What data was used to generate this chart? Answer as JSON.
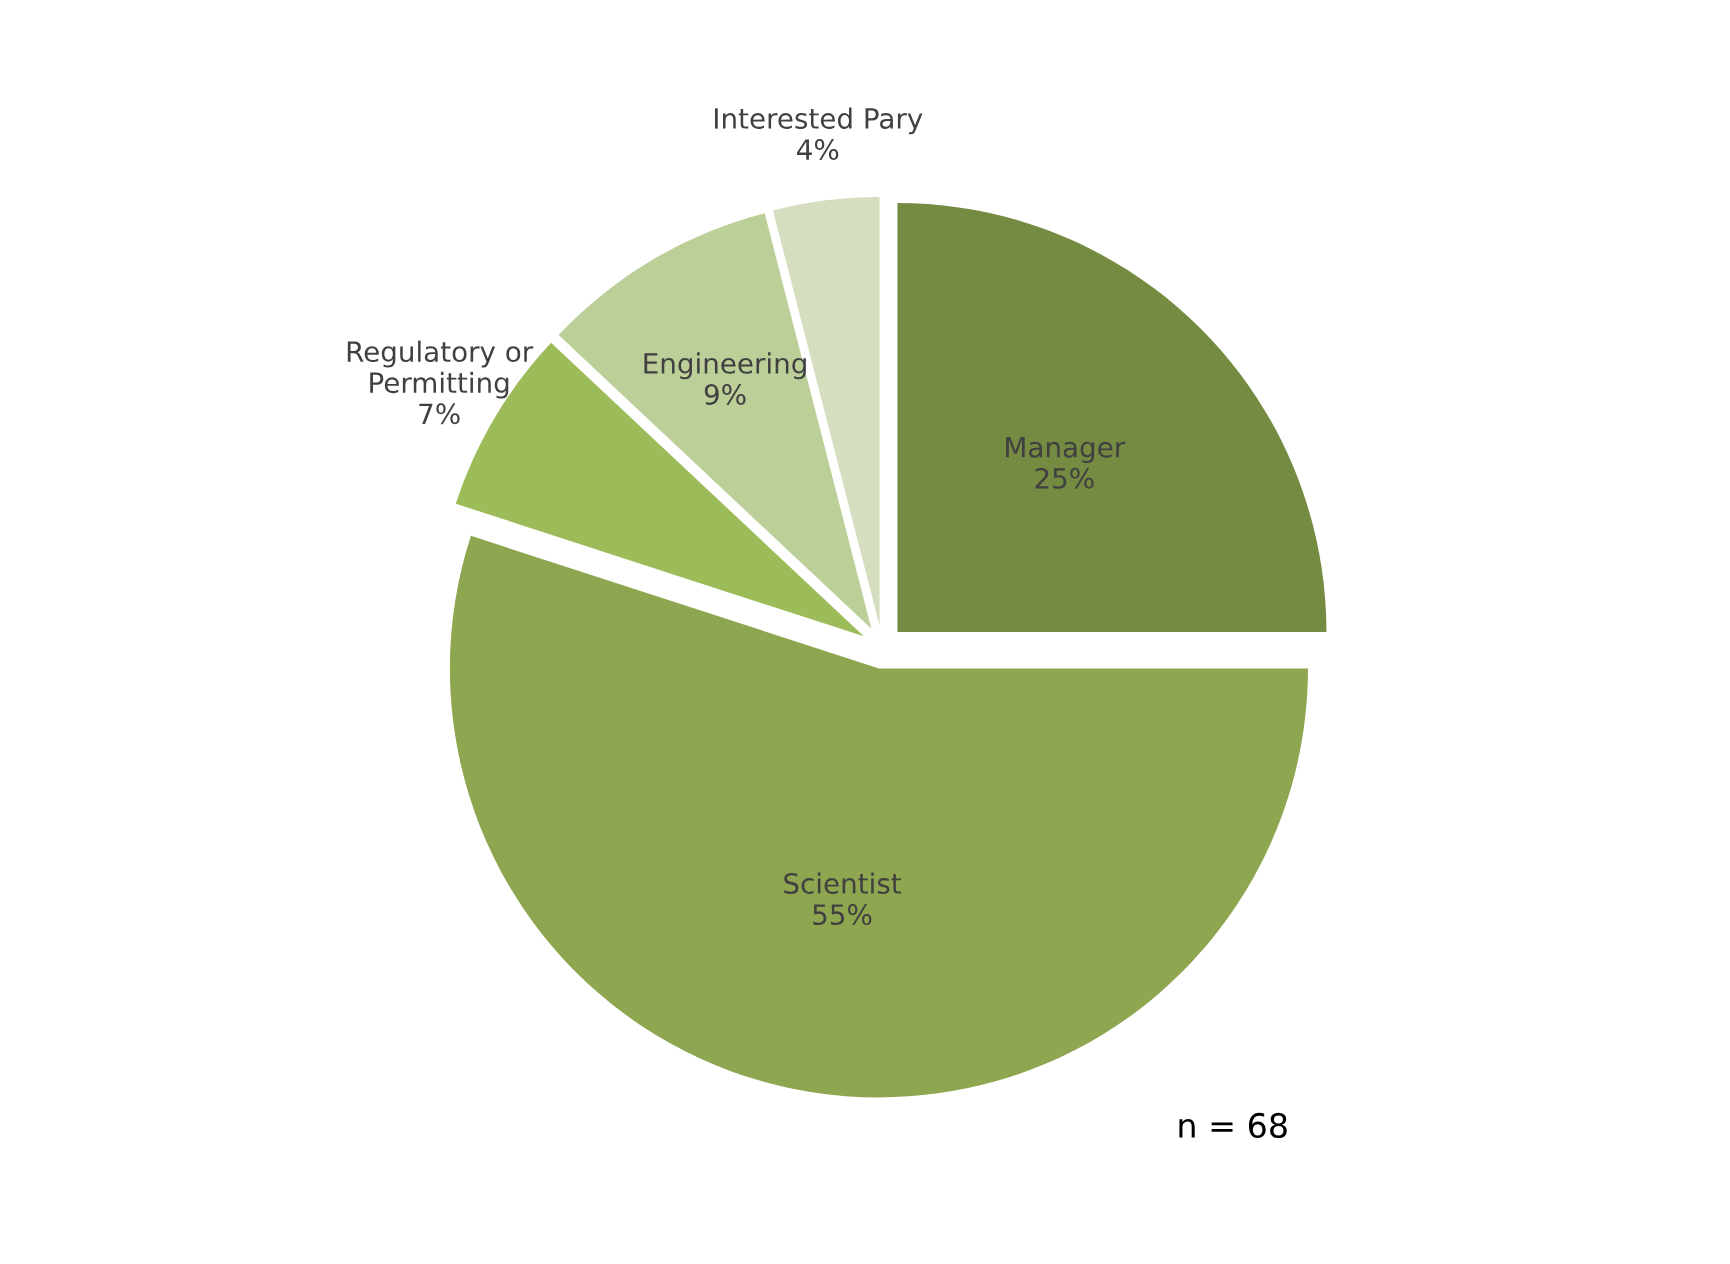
{
  "chart_data": {
    "type": "pie",
    "categories": [
      "Manager",
      "Scientist",
      "Regulatory or\nPermitting",
      "Engineering",
      "Interested Pary"
    ],
    "values": [
      25,
      55,
      7,
      9,
      4
    ],
    "value_labels": [
      "25%",
      "55%",
      "7%",
      "9%",
      "4%"
    ],
    "colors": [
      "#758b41",
      "#8ea64f",
      "#9cbc5a",
      "#bccf98",
      "#d5dfc0"
    ],
    "annotations": [
      "n = 68"
    ],
    "legend": false
  }
}
